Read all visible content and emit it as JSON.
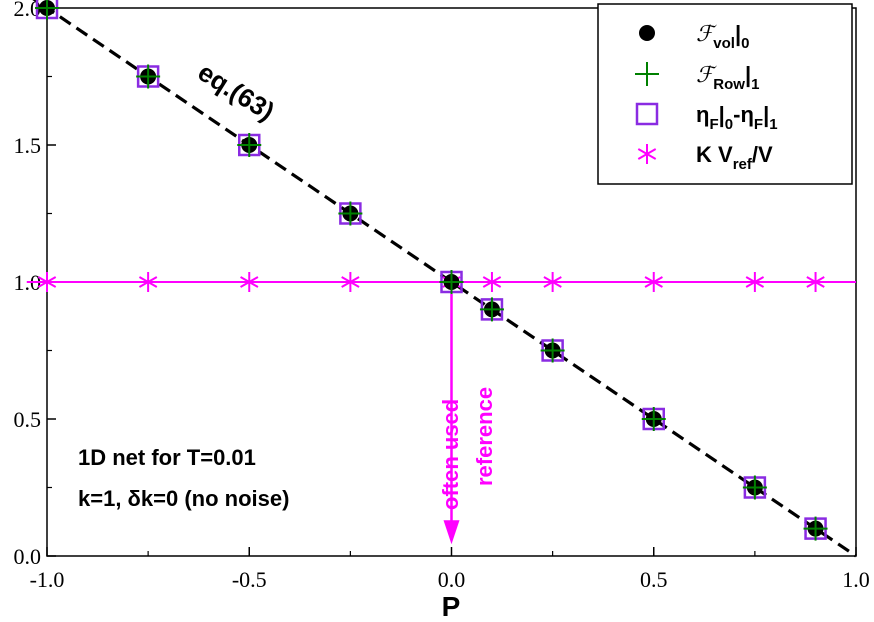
{
  "chart_data": {
    "type": "scatter",
    "title": "",
    "xlabel": "P",
    "ylabel": "",
    "xlim": [
      -1.0,
      1.0
    ],
    "ylim": [
      0.0,
      2.0
    ],
    "x_ticks": [
      "-1.0",
      "-0.5",
      "0.0",
      "0.5",
      "1.0"
    ],
    "y_ticks": [
      "0.0",
      "0.5",
      "1.0",
      "1.5",
      "2.0"
    ],
    "x_tick_values": [
      -1.0,
      -0.5,
      0.0,
      0.5,
      1.0
    ],
    "y_tick_values": [
      0.0,
      0.5,
      1.0,
      1.5,
      2.0
    ],
    "series": [
      {
        "name": "F_vol|0",
        "label_script": "ℱ",
        "label_sub": "vol",
        "label_rest": "|",
        "label_sub2": "0",
        "marker": "filled-circle",
        "color": "#000000",
        "x": [
          -1.0,
          -0.75,
          -0.5,
          -0.25,
          0.0,
          0.1,
          0.25,
          0.5,
          0.75,
          0.9
        ],
        "y": [
          2.0,
          1.75,
          1.5,
          1.25,
          1.0,
          0.9,
          0.75,
          0.5,
          0.25,
          0.1
        ]
      },
      {
        "name": "F_Row|1",
        "label_script": "ℱ",
        "label_sub": "Row",
        "label_rest": "|",
        "label_sub2": "1",
        "marker": "plus",
        "color": "#008000",
        "x": [
          -1.0,
          -0.75,
          -0.5,
          -0.25,
          0.0,
          0.1,
          0.25,
          0.5,
          0.75,
          0.9
        ],
        "y": [
          2.0,
          1.75,
          1.5,
          1.25,
          1.0,
          0.9,
          0.75,
          0.5,
          0.25,
          0.1
        ]
      },
      {
        "name": "eta_F|0-eta_F|1",
        "label_text": "η",
        "marker": "open-square",
        "color": "#8a2be2",
        "x": [
          -1.0,
          -0.75,
          -0.5,
          -0.25,
          0.0,
          0.1,
          0.25,
          0.5,
          0.75,
          0.9
        ],
        "y": [
          2.0,
          1.75,
          1.5,
          1.25,
          1.0,
          0.9,
          0.75,
          0.5,
          0.25,
          0.1
        ]
      },
      {
        "name": "K V_ref/V",
        "label_text": "K  V",
        "label_sub": "ref",
        "label_rest": "/V",
        "marker": "asterisk",
        "color": "#ff00ff",
        "x": [
          -1.0,
          -0.75,
          -0.5,
          -0.25,
          0.0,
          0.1,
          0.25,
          0.5,
          0.75,
          0.9
        ],
        "y": [
          1.0,
          1.0,
          1.0,
          1.0,
          1.0,
          1.0,
          1.0,
          1.0,
          1.0,
          1.0
        ]
      }
    ],
    "lines": [
      {
        "name": "eq.(63)",
        "style": "dashed",
        "color": "#000000",
        "x": [
          -1.05,
          1.0
        ],
        "y": [
          2.05,
          0.0
        ]
      },
      {
        "name": "K V_ref/V line",
        "style": "solid",
        "color": "#ff00ff",
        "x": [
          -1.05,
          1.0
        ],
        "y": [
          1.0,
          1.0
        ]
      }
    ],
    "annotations": {
      "eq_label": "eq.(63)",
      "arrow_text_1": "often used",
      "arrow_text_2": "reference",
      "arrow_x": 0.0,
      "arrow_y_from": 1.0,
      "arrow_y_to": 0.05,
      "info_line_1": "1D net for T=0.01",
      "info_line_2": "k=1, δk=0 (no noise)"
    },
    "legend_position": "top-right",
    "grid": false
  },
  "colors": {
    "black": "#000000",
    "green": "#008000",
    "purple": "#8a2be2",
    "magenta": "#ff00ff"
  }
}
